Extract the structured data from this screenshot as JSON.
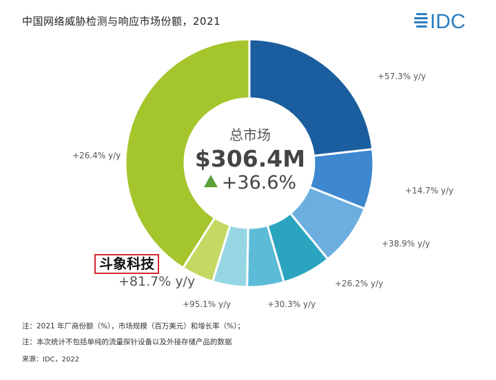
{
  "title": "中国网络威胁检测与响应市场份额，2021",
  "logo": {
    "text": "IDC",
    "color": "#2a7cc0"
  },
  "center": {
    "label": "总市场",
    "value": "$306.4M",
    "growth": "+36.6%",
    "growth_icon": "up-triangle-icon",
    "growth_color": "#5aa13a"
  },
  "highlight_vendor": {
    "name": "斗象科技",
    "border_color": "#d9262c"
  },
  "chart_data": {
    "type": "pie",
    "style": "donut",
    "note": "segment shares are not printed; values are estimated from slice angles (%)",
    "series": [
      {
        "value": 23.2,
        "growth_label": "+57.3% y/y",
        "color": "#1b5e9f"
      },
      {
        "value": 7.8,
        "growth_label": "+14.7% y/y",
        "color": "#3d88cf"
      },
      {
        "value": 8.1,
        "growth_label": "+38.9% y/y",
        "color": "#6caee0"
      },
      {
        "value": 6.4,
        "growth_label": "+26.2% y/y",
        "color": "#2ba5bf"
      },
      {
        "value": 4.8,
        "growth_label": "+30.3% y/y",
        "color": "#5cbcd8"
      },
      {
        "value": 4.5,
        "growth_label": "+95.1% y/y",
        "color": "#96d6e3"
      },
      {
        "value": 4.2,
        "growth_label": "+81.7% y/y",
        "color": "#c3d964",
        "vendor": "斗象科技"
      },
      {
        "value": 41.0,
        "growth_label": "+26.4% y/y",
        "color": "#a5c52c"
      }
    ]
  },
  "notes": [
    "注：2021 年厂商份额（%），市场规模（百万美元）和增长率（%）；",
    "注：本次统计不包括单纯的流量探针设备以及外接存储产品的数据"
  ],
  "source": "来源：IDC，2022"
}
